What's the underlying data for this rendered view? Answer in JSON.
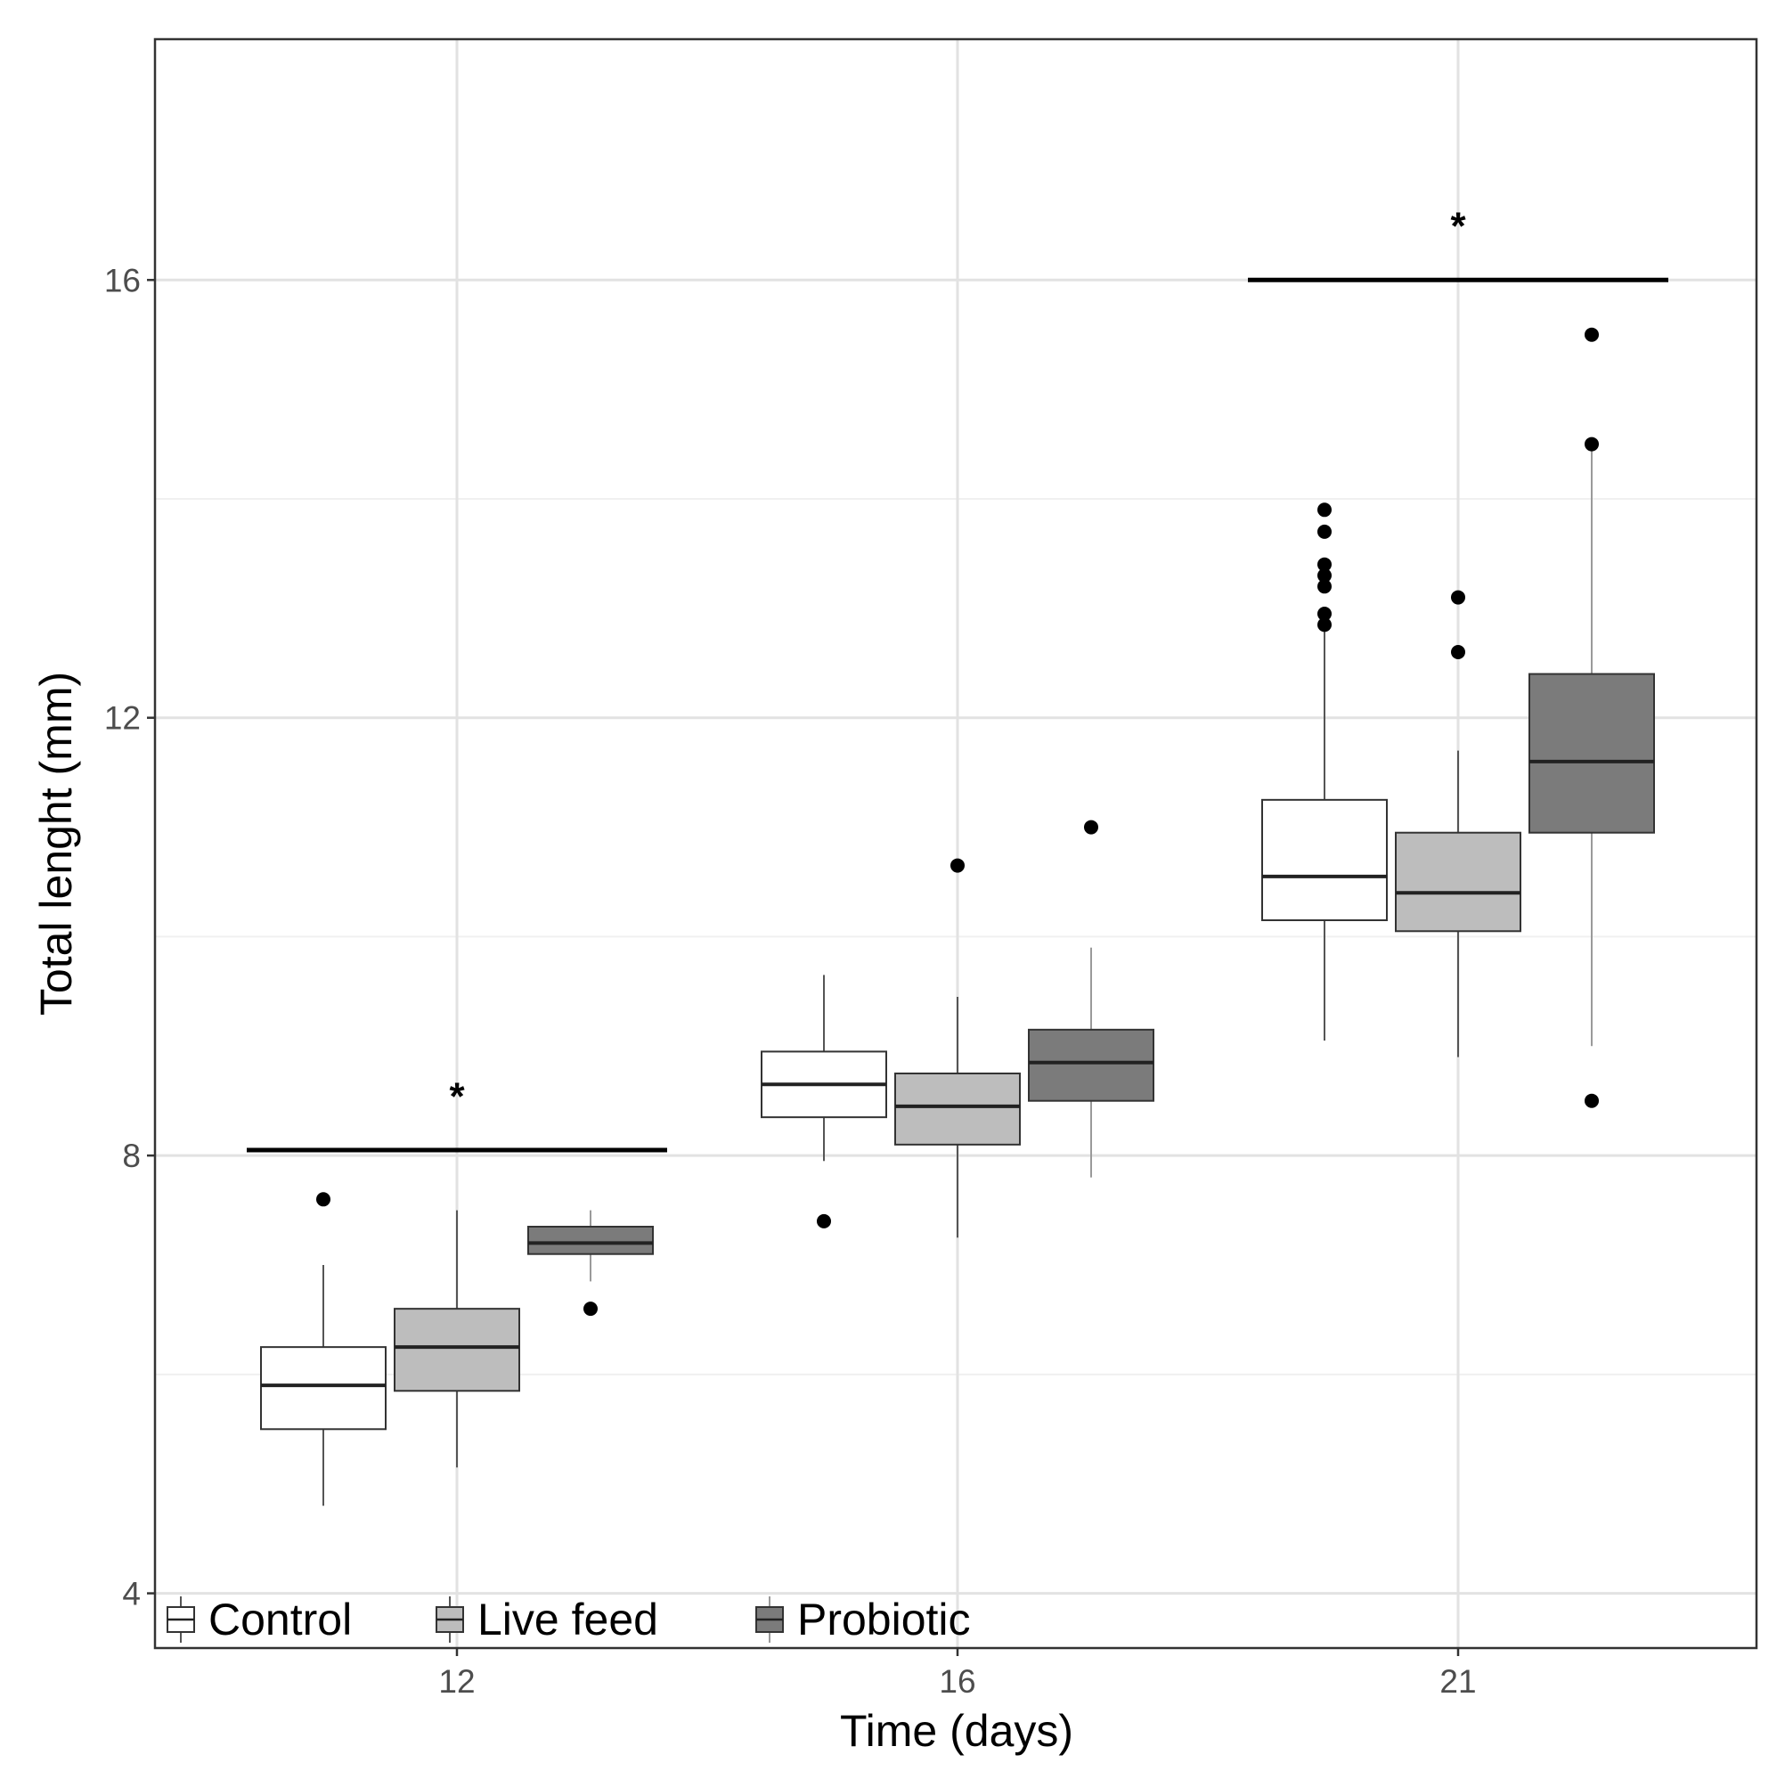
{
  "chart_data": {
    "type": "boxplot",
    "xlabel": "Time (days)",
    "ylabel": "Total lenght (mm)",
    "ylim": [
      3.5,
      18.2
    ],
    "y_ticks": [
      4,
      8,
      12,
      16
    ],
    "y_minor_ticks": [
      6,
      10,
      14
    ],
    "categories": [
      "12",
      "16",
      "21"
    ],
    "grid": true,
    "legend_position": "bottom-left inside",
    "series": [
      {
        "name": "Control",
        "fill": "#ffffff",
        "stroke": "#333333",
        "boxes": [
          {
            "category": "12",
            "whisker_low": 4.8,
            "q1": 5.5,
            "median": 5.9,
            "q3": 6.25,
            "whisker_high": 7.0,
            "outliers": [
              7.6
            ]
          },
          {
            "category": "16",
            "whisker_low": 7.95,
            "q1": 8.35,
            "median": 8.65,
            "q3": 8.95,
            "whisker_high": 9.65,
            "outliers": [
              7.4
            ]
          },
          {
            "category": "21",
            "whisker_low": 9.05,
            "q1": 10.15,
            "median": 10.55,
            "q3": 11.25,
            "whisker_high": 12.8,
            "outliers": [
              12.85,
              12.95,
              13.2,
              13.3,
              13.4,
              13.7,
              13.9
            ]
          }
        ]
      },
      {
        "name": "Live feed",
        "fill": "#bdbdbd",
        "stroke": "#333333",
        "boxes": [
          {
            "category": "12",
            "whisker_low": 5.15,
            "q1": 5.85,
            "median": 6.25,
            "q3": 6.6,
            "whisker_high": 7.5,
            "outliers": []
          },
          {
            "category": "16",
            "whisker_low": 7.25,
            "q1": 8.1,
            "median": 8.45,
            "q3": 8.75,
            "whisker_high": 9.45,
            "outliers": [
              10.65
            ]
          },
          {
            "category": "21",
            "whisker_low": 8.9,
            "q1": 10.05,
            "median": 10.4,
            "q3": 10.95,
            "whisker_high": 11.7,
            "outliers": [
              12.6,
              13.1
            ]
          }
        ]
      },
      {
        "name": "Probiotic",
        "fill": "#7b7b7b",
        "stroke": "#333333",
        "boxes": [
          {
            "category": "12",
            "whisker_low": 6.85,
            "q1": 7.1,
            "median": 7.2,
            "q3": 7.35,
            "whisker_high": 7.5,
            "outliers": [
              6.6
            ]
          },
          {
            "category": "16",
            "whisker_low": 7.8,
            "q1": 8.5,
            "median": 8.85,
            "q3": 9.15,
            "whisker_high": 9.9,
            "outliers": [
              11.0
            ]
          },
          {
            "category": "21",
            "whisker_low": 9.0,
            "q1": 10.95,
            "median": 11.6,
            "q3": 12.4,
            "whisker_high": 14.45,
            "outliers": [
              8.5,
              14.5,
              15.5
            ]
          }
        ]
      }
    ],
    "annotations": [
      {
        "category": "12",
        "text": "*",
        "bar_y": 8.05,
        "label_y": 8.6
      },
      {
        "category": "21",
        "text": "*",
        "bar_y": 16.0,
        "label_y": 16.55
      }
    ]
  },
  "colors": {
    "panel_border": "#333333",
    "grid_major": "#e2e2e2",
    "grid_minor": "#f0f0f0"
  }
}
